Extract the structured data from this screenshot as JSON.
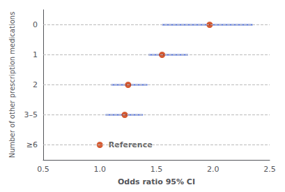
{
  "chart_data": {
    "type": "forest",
    "xlabel": "Odds ratio 95% CI",
    "ylabel": "Number of other prescription medications",
    "categories": [
      "0",
      "1",
      "2",
      "3–5",
      "≥6"
    ],
    "values": [
      1.97,
      1.55,
      1.25,
      1.22,
      1.0
    ],
    "ci_lower": [
      1.55,
      1.43,
      1.1,
      1.05,
      1.0
    ],
    "ci_upper": [
      2.35,
      1.78,
      1.42,
      1.38,
      1.0
    ],
    "color": "#cc3300",
    "xlim": [
      0.5,
      2.5
    ],
    "xticks": [
      0.5,
      {
        "value": 1.0,
        "label": "1.0"
      },
      1.5,
      {
        "value": 2.0,
        "label": "2.0"
      },
      2.5
    ],
    "grid": true,
    "annotations": [
      {
        "text": "Reference",
        "category": "≥6"
      }
    ]
  }
}
